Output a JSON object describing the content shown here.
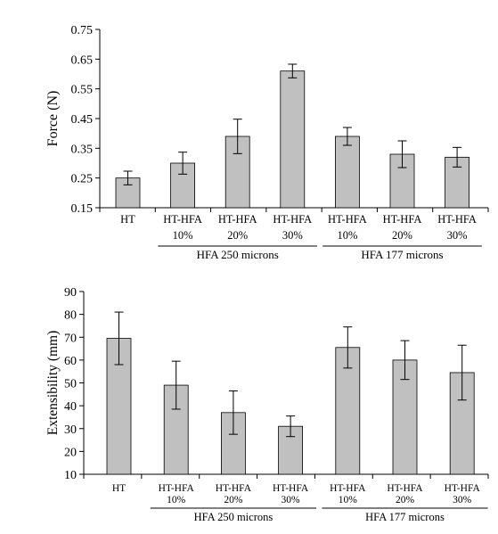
{
  "chart_data": [
    {
      "type": "bar",
      "title": "",
      "xlabel": "",
      "ylabel": "Force (N)",
      "ylim": [
        0.15,
        0.75
      ],
      "yticks": [
        "0.15",
        "0.25",
        "0.35",
        "0.45",
        "0.55",
        "0.65",
        "0.75"
      ],
      "grid": false,
      "categories": [
        {
          "top": "HT",
          "bottom": ""
        },
        {
          "top": "HT-HFA",
          "bottom": "10%"
        },
        {
          "top": "HT-HFA",
          "bottom": "20%"
        },
        {
          "top": "HT-HFA",
          "bottom": "30%"
        },
        {
          "top": "HT-HFA",
          "bottom": "10%"
        },
        {
          "top": "HT-HFA",
          "bottom": "20%"
        },
        {
          "top": "HT-HFA",
          "bottom": "30%"
        }
      ],
      "values": [
        0.25,
        0.3,
        0.39,
        0.61,
        0.39,
        0.33,
        0.32
      ],
      "errors": [
        0.023,
        0.037,
        0.058,
        0.023,
        0.03,
        0.045,
        0.033
      ],
      "groups": [
        {
          "label": "HFA 250 microns",
          "from": 1,
          "to": 3
        },
        {
          "label": "HFA 177 microns",
          "from": 4,
          "to": 6
        }
      ],
      "bar_color": "#c0c0c0"
    },
    {
      "type": "bar",
      "title": "",
      "xlabel": "",
      "ylabel": "Extensibility (mm)",
      "ylim": [
        10,
        90
      ],
      "yticks": [
        "10",
        "20",
        "30",
        "40",
        "50",
        "60",
        "70",
        "80",
        "90"
      ],
      "grid": false,
      "categories": [
        {
          "top": "HT",
          "bottom": ""
        },
        {
          "top": "HT-HFA",
          "bottom": "10%"
        },
        {
          "top": "HT-HFA",
          "bottom": "20%"
        },
        {
          "top": "HT-HFA",
          "bottom": "30%"
        },
        {
          "top": "HT-HFA",
          "bottom": "10%"
        },
        {
          "top": "HT-HFA",
          "bottom": "20%"
        },
        {
          "top": "HT-HFA",
          "bottom": "30%"
        }
      ],
      "values": [
        69.5,
        49,
        37,
        31,
        65.5,
        60,
        54.5
      ],
      "errors": [
        11.5,
        10.5,
        9.5,
        4.5,
        9,
        8.5,
        12
      ],
      "groups": [
        {
          "label": "HFA 250 microns",
          "from": 1,
          "to": 3
        },
        {
          "label": "HFA 177 microns",
          "from": 4,
          "to": 6
        }
      ],
      "bar_color": "#c0c0c0"
    }
  ]
}
